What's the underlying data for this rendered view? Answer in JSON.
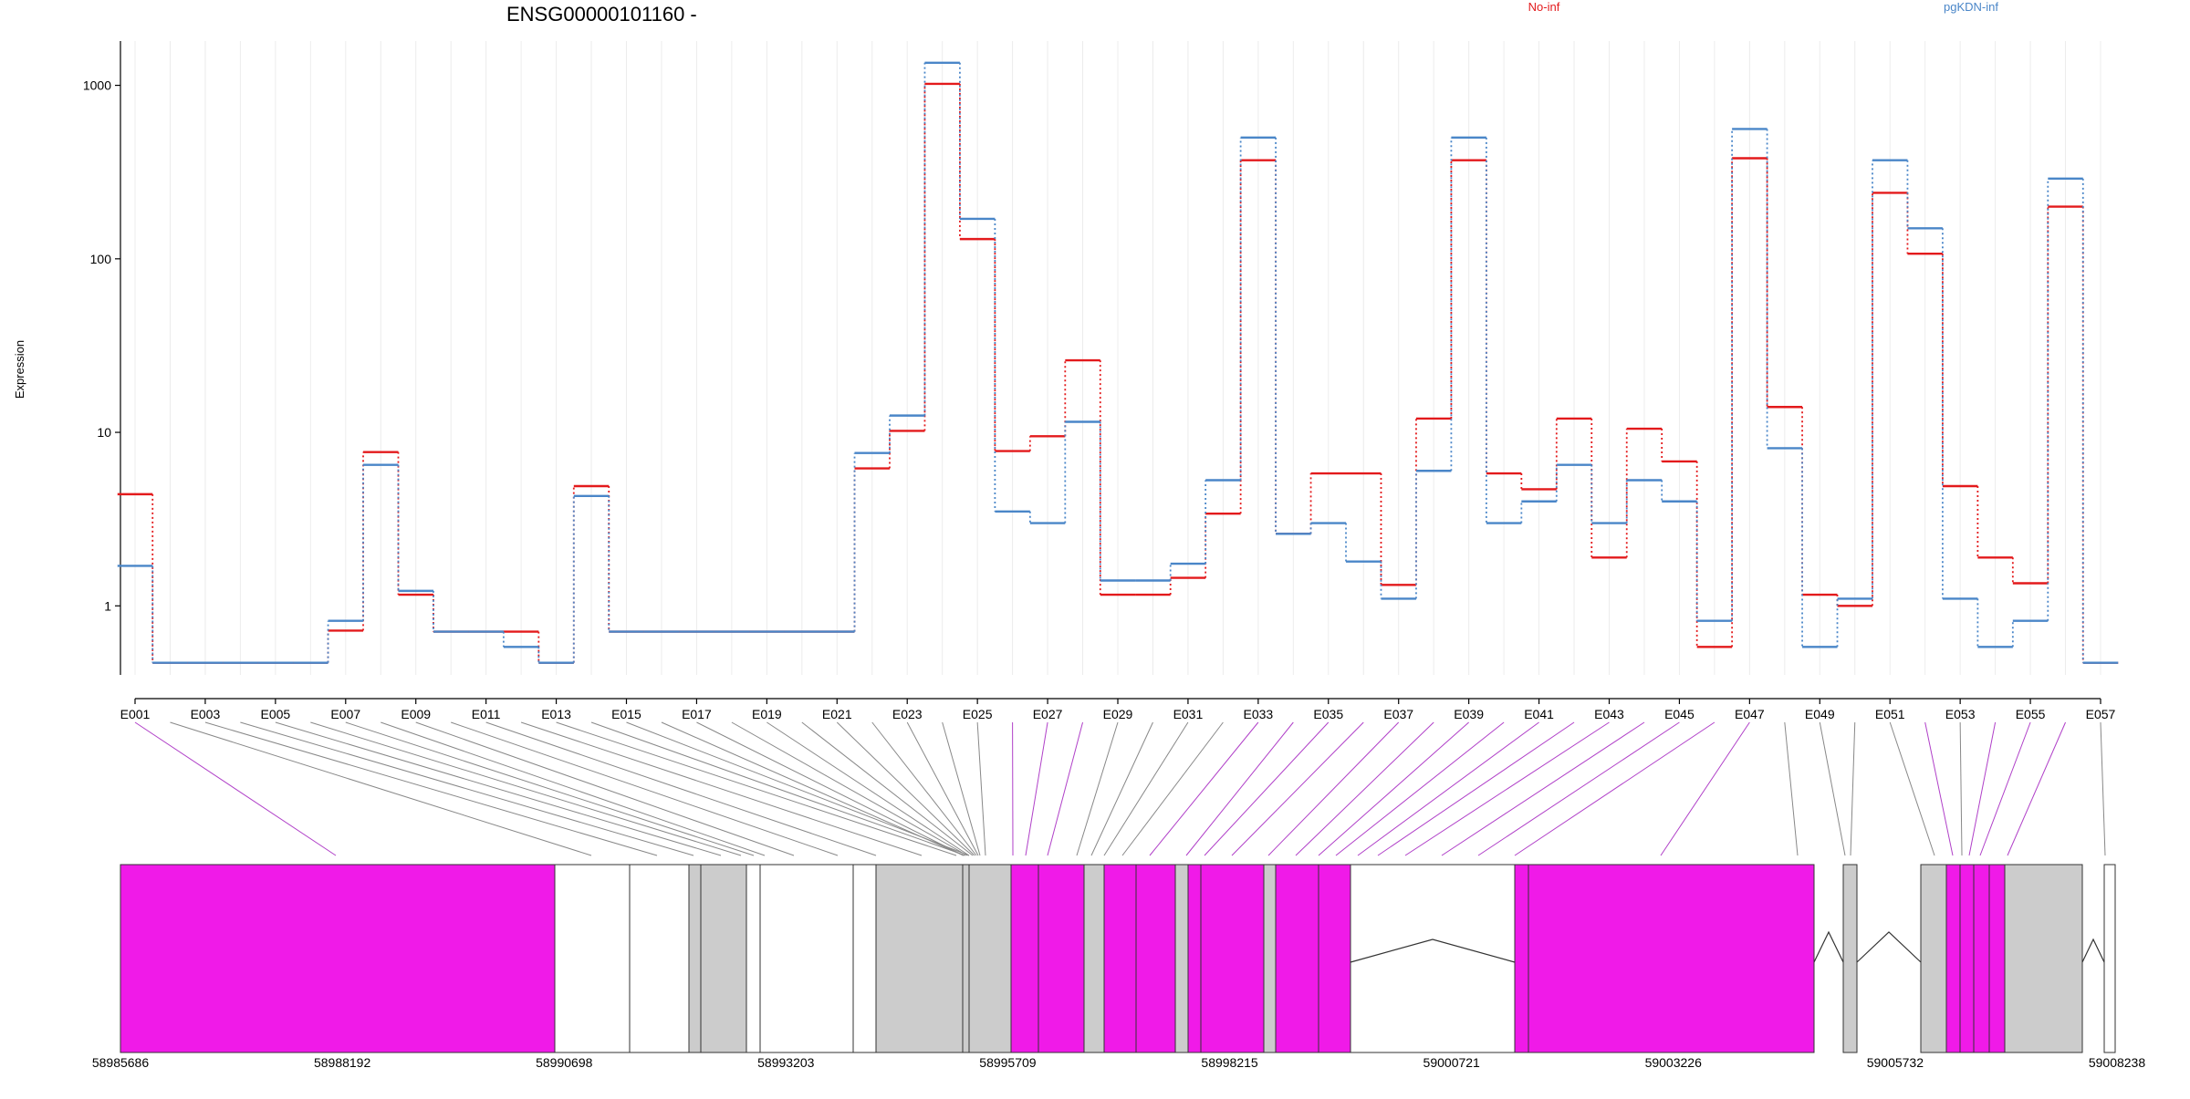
{
  "chart_data": {
    "type": "line",
    "title": "ENSG00000101160 -",
    "ylabel": "Expression",
    "xlabel": "",
    "y_scale": "log",
    "ylim": [
      0.4,
      1800
    ],
    "y_ticks": [
      1,
      10,
      100,
      1000
    ],
    "y_tick_labels": [
      "1",
      "10",
      "100",
      "1000"
    ],
    "grid": "vertical",
    "legend_placement": "top-right",
    "categories": [
      "E001",
      "E002",
      "E003",
      "E004",
      "E005",
      "E006",
      "E007",
      "E008",
      "E009",
      "E010",
      "E011",
      "E012",
      "E013",
      "E014",
      "E015",
      "E016",
      "E017",
      "E018",
      "E019",
      "E020",
      "E021",
      "E022",
      "E023",
      "E024",
      "E025",
      "E026",
      "E027",
      "E028",
      "E029",
      "E030",
      "E031",
      "E032",
      "E033",
      "E034",
      "E035",
      "E036",
      "E037",
      "E038",
      "E039",
      "E040",
      "E041",
      "E042",
      "E043",
      "E044",
      "E045",
      "E046",
      "E047",
      "E048",
      "E049",
      "E050",
      "E051",
      "E052",
      "E053",
      "E054",
      "E055",
      "E056",
      "E057"
    ],
    "x_tick_labels": [
      "E001",
      "E003",
      "E005",
      "E007",
      "E009",
      "E011",
      "E013",
      "E015",
      "E017",
      "E019",
      "E021",
      "E023",
      "E025",
      "E027",
      "E029",
      "E031",
      "E033",
      "E035",
      "E037",
      "E039",
      "E041",
      "E043",
      "E045",
      "E047",
      "E049",
      "E051",
      "E053",
      "E055",
      "E057"
    ],
    "series": [
      {
        "name": "No-inf",
        "color": "#e31a1c",
        "values": [
          4.4,
          0.47,
          0.47,
          0.47,
          0.47,
          0.47,
          0.72,
          7.7,
          1.16,
          0.71,
          0.71,
          0.71,
          0.47,
          4.9,
          0.71,
          0.71,
          0.71,
          0.71,
          0.71,
          0.71,
          0.71,
          6.2,
          10.2,
          1020,
          130,
          7.8,
          9.5,
          26,
          1.16,
          1.16,
          1.45,
          3.4,
          370,
          2.6,
          5.8,
          5.8,
          1.32,
          12,
          370,
          5.8,
          4.7,
          12,
          1.9,
          10.5,
          6.8,
          0.58,
          380,
          14,
          1.16,
          1.0,
          240,
          107,
          4.9,
          1.9,
          1.35,
          200,
          0.47
        ]
      },
      {
        "name": "pgKDN-inf",
        "color": "#4a86c8",
        "values": [
          1.7,
          0.47,
          0.47,
          0.47,
          0.47,
          0.47,
          0.82,
          6.5,
          1.22,
          0.71,
          0.71,
          0.58,
          0.47,
          4.3,
          0.71,
          0.71,
          0.71,
          0.71,
          0.71,
          0.71,
          0.71,
          7.6,
          12.5,
          1350,
          170,
          3.5,
          3.0,
          11.5,
          1.4,
          1.4,
          1.75,
          5.3,
          500,
          2.6,
          3.0,
          1.8,
          1.1,
          6.0,
          500,
          3.0,
          4.0,
          6.5,
          3.0,
          5.3,
          4.0,
          0.82,
          560,
          8.1,
          0.58,
          1.1,
          370,
          150,
          1.1,
          0.58,
          0.82,
          290,
          0.47
        ]
      }
    ],
    "gene_model": {
      "x_ticks": [
        58985686,
        58988192,
        58990698,
        58993203,
        58995709,
        58998215,
        59000721,
        59003226,
        59005732,
        59008238
      ],
      "x_tick_labels": [
        "58985686",
        "58988192",
        "58990698",
        "58993203",
        "58995709",
        "58998215",
        "59000721",
        "59003226",
        "59005732",
        "59008238"
      ],
      "range": [
        58985686,
        59008238
      ],
      "highlight_color": "#f01ae8",
      "normal_color": "#cccccc"
    }
  }
}
